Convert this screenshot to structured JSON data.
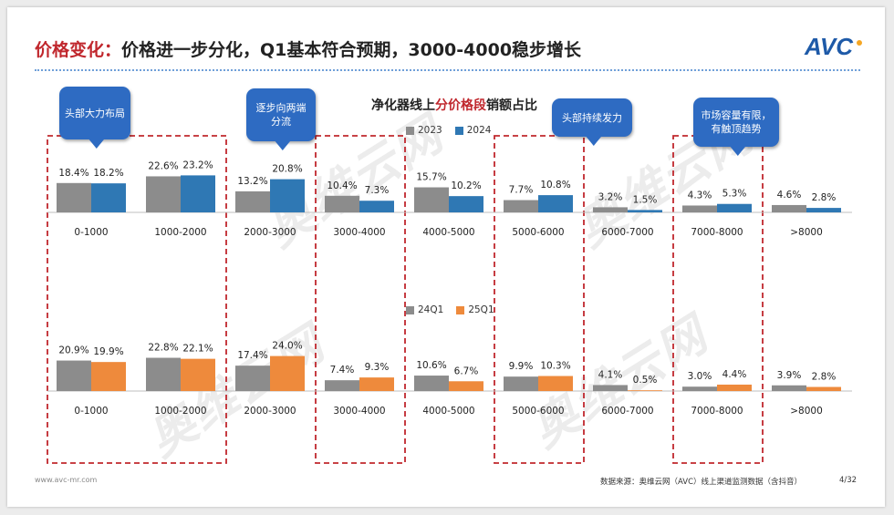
{
  "slide": {
    "title_prefix": "价格变化：",
    "title_text": "价格进一步分化，Q1基本符合预期，3000-4000稳步增长",
    "logo_text": "AVC",
    "chart_title_a": "净化器线上",
    "chart_title_b": "分价格段",
    "chart_title_c": "销额占比",
    "watermark": "奥维云网",
    "footer_url": "www.avc-mr.com",
    "footer_source": "数据来源：奥维云网（AVC）线上渠道监测数据（含抖音）",
    "page_number": "4/32"
  },
  "callouts": [
    {
      "text": "头部大力布局"
    },
    {
      "text": "逐步向两端分流"
    },
    {
      "text": "头部持续发力"
    },
    {
      "text": "市场容量有限，有触顶趋势"
    }
  ],
  "colors": {
    "series_grey": "#8c8c8c",
    "series_blue": "#2f78b4",
    "series_orange": "#ee8a3c",
    "dash_red": "#c0272d",
    "callout_blue": "#2e6bc2"
  },
  "chart_data": [
    {
      "type": "bar",
      "title": "净化器线上分价格段销额占比",
      "categories": [
        "0-1000",
        "1000-2000",
        "2000-3000",
        "3000-4000",
        "4000-5000",
        "5000-6000",
        "6000-7000",
        "7000-8000",
        ">8000"
      ],
      "series": [
        {
          "name": "2023",
          "values": [
            18.4,
            22.6,
            13.2,
            10.4,
            15.7,
            7.7,
            3.2,
            4.3,
            4.6
          ],
          "labels": [
            "18.4%",
            "22.6%",
            "13.2%",
            "10.4%",
            "15.7%",
            "7.7%",
            "3.2%",
            "4.3%",
            "4.6%"
          ]
        },
        {
          "name": "2024",
          "values": [
            18.2,
            23.2,
            20.8,
            7.3,
            10.2,
            10.8,
            1.5,
            5.3,
            2.8
          ],
          "labels": [
            "18.2%",
            "23.2%",
            "20.8%",
            "7.3%",
            "10.2%",
            "10.8%",
            "1.5%",
            "5.3%",
            "2.8%"
          ]
        }
      ],
      "legend": "top"
    },
    {
      "type": "bar",
      "categories": [
        "0-1000",
        "1000-2000",
        "2000-3000",
        "3000-4000",
        "4000-5000",
        "5000-6000",
        "6000-7000",
        "7000-8000",
        ">8000"
      ],
      "series": [
        {
          "name": "24Q1",
          "values": [
            20.9,
            22.8,
            17.4,
            7.4,
            10.6,
            9.9,
            4.1,
            3.0,
            3.9
          ],
          "labels": [
            "20.9%",
            "22.8%",
            "17.4%",
            "7.4%",
            "10.6%",
            "9.9%",
            "4.1%",
            "3.0%",
            "3.9%"
          ]
        },
        {
          "name": "25Q1",
          "values": [
            19.9,
            22.1,
            24.0,
            9.3,
            6.7,
            10.3,
            0.5,
            4.4,
            2.8
          ],
          "labels": [
            "19.9%",
            "22.1%",
            "24.0%",
            "9.3%",
            "6.7%",
            "10.3%",
            "0.5%",
            "4.4%",
            "2.8%"
          ]
        }
      ],
      "legend": "top"
    }
  ]
}
